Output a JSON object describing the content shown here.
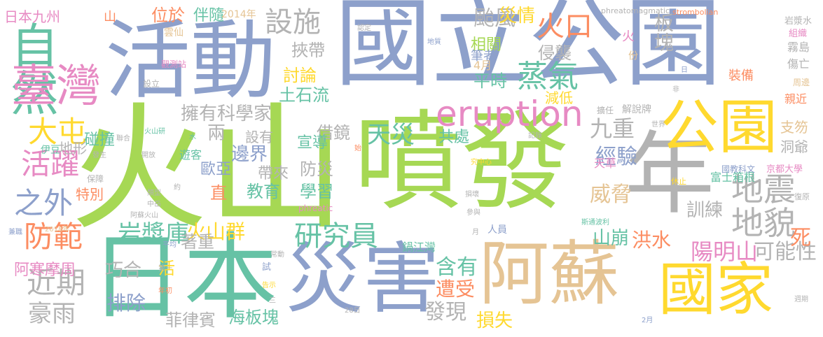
{
  "palette": {
    "green": "#a6d854",
    "teal": "#66c2a5",
    "blue": "#8da0cb",
    "pink": "#e78ac3",
    "orange": "#fc8d62",
    "yellow": "#ffd92f",
    "tan": "#e5c494",
    "gray": "#b3b3b3"
  },
  "words": [
    {
      "text": "國立公園",
      "color": "blue"
    },
    {
      "text": "活動",
      "color": "blue"
    },
    {
      "text": "火山",
      "color": "green"
    },
    {
      "text": "噴發",
      "color": "green"
    },
    {
      "text": "日本",
      "color": "teal"
    },
    {
      "text": "災害",
      "color": "blue"
    },
    {
      "text": "阿蘇",
      "color": "tan"
    },
    {
      "text": "國家",
      "color": "yellow"
    },
    {
      "text": "年",
      "color": "gray"
    },
    {
      "text": "公園",
      "color": "yellow"
    },
    {
      "text": "自然",
      "color": "teal"
    },
    {
      "text": "臺灣",
      "color": "pink"
    },
    {
      "text": "eruption",
      "color": "pink"
    },
    {
      "text": "設施",
      "color": "gray"
    },
    {
      "text": "火口",
      "color": "orange"
    },
    {
      "text": "颱風",
      "color": "gray"
    },
    {
      "text": "災情",
      "color": "yellow"
    },
    {
      "text": "蒸氣",
      "color": "teal"
    },
    {
      "text": "侵襲",
      "color": "gray"
    },
    {
      "text": "相關",
      "color": "green"
    },
    {
      "text": "板塊",
      "color": "gray"
    },
    {
      "text": "地震",
      "color": "gray"
    },
    {
      "text": "地貌",
      "color": "gray"
    },
    {
      "text": "九重",
      "color": "gray"
    },
    {
      "text": "天災",
      "color": "teal"
    },
    {
      "text": "大屯",
      "color": "yellow"
    },
    {
      "text": "活躍",
      "color": "pink"
    },
    {
      "text": "之外",
      "color": "blue"
    },
    {
      "text": "防範",
      "color": "orange"
    },
    {
      "text": "近期",
      "color": "gray"
    },
    {
      "text": "豪雨",
      "color": "gray"
    },
    {
      "text": "研究員",
      "color": "teal"
    },
    {
      "text": "岩漿庫",
      "color": "teal"
    },
    {
      "text": "火山群",
      "color": "yellow"
    },
    {
      "text": "擁有科學家",
      "color": "gray"
    },
    {
      "text": "陽明山",
      "color": "pink"
    },
    {
      "text": "可能性",
      "color": "gray"
    },
    {
      "text": "威脅",
      "color": "tan"
    },
    {
      "text": "經驗",
      "color": "blue"
    },
    {
      "text": "山崩",
      "color": "teal"
    },
    {
      "text": "洪水",
      "color": "orange"
    },
    {
      "text": "訓練",
      "color": "gray"
    },
    {
      "text": "死",
      "color": "orange"
    },
    {
      "text": "含有",
      "color": "teal"
    },
    {
      "text": "遭受",
      "color": "orange"
    },
    {
      "text": "發現",
      "color": "gray"
    },
    {
      "text": "損失",
      "color": "yellow"
    },
    {
      "text": "菲律賓",
      "color": "gray"
    },
    {
      "text": "海板塊",
      "color": "teal"
    },
    {
      "text": "排除",
      "color": "blue"
    },
    {
      "text": "巧合",
      "color": "gray"
    },
    {
      "text": "阿寒摩周",
      "color": "pink"
    },
    {
      "text": "日本九州",
      "color": "pink"
    },
    {
      "text": "位於",
      "color": "orange"
    },
    {
      "text": "伴隨",
      "color": "teal"
    },
    {
      "text": "2014年",
      "color": "tan"
    },
    {
      "text": "挾帶",
      "color": "gray"
    },
    {
      "text": "討論",
      "color": "yellow"
    },
    {
      "text": "土石流",
      "color": "teal"
    },
    {
      "text": "平時",
      "color": "teal"
    },
    {
      "text": "減低",
      "color": "yellow"
    },
    {
      "text": "借鏡",
      "color": "gray"
    },
    {
      "text": "兩",
      "color": "gray"
    },
    {
      "text": "設有",
      "color": "gray"
    },
    {
      "text": "宣導",
      "color": "teal"
    },
    {
      "text": "共處",
      "color": "teal"
    },
    {
      "text": "邊界",
      "color": "blue"
    },
    {
      "text": "防災",
      "color": "gray"
    },
    {
      "text": "歐亞",
      "color": "blue"
    },
    {
      "text": "帶來",
      "color": "gray"
    },
    {
      "text": "學習",
      "color": "teal"
    },
    {
      "text": "教育",
      "color": "teal"
    },
    {
      "text": "直",
      "color": "orange"
    },
    {
      "text": "著重",
      "color": "gray"
    },
    {
      "text": "活",
      "color": "yellow"
    },
    {
      "text": "碰撞",
      "color": "teal"
    },
    {
      "text": "地形",
      "color": "gray"
    },
    {
      "text": "特別",
      "color": "orange"
    },
    {
      "text": "遊客",
      "color": "teal"
    },
    {
      "text": "筆者",
      "color": "blue"
    },
    {
      "text": "4月",
      "color": "tan"
    },
    {
      "text": "火",
      "color": "pink"
    },
    {
      "text": "份",
      "color": "tan"
    },
    {
      "text": "裝備",
      "color": "orange"
    },
    {
      "text": "解說牌",
      "color": "gray"
    },
    {
      "text": "擴任",
      "color": "gray"
    },
    {
      "text": "天草",
      "color": "pink"
    },
    {
      "text": "富士箱根",
      "color": "teal"
    },
    {
      "text": "京都大學",
      "color": "pink"
    },
    {
      "text": "國教科文",
      "color": "blue"
    },
    {
      "text": "支笏",
      "color": "tan"
    },
    {
      "text": "洞爺",
      "color": "gray"
    },
    {
      "text": "親近",
      "color": "orange"
    },
    {
      "text": "周邊",
      "color": "tan"
    },
    {
      "text": "傷亡",
      "color": "gray"
    },
    {
      "text": "霧島",
      "color": "gray"
    },
    {
      "text": "組織",
      "color": "pink"
    },
    {
      "text": "岩漿水",
      "color": "gray"
    },
    {
      "text": "phreatomagmatic",
      "color": "gray"
    },
    {
      "text": "strombolian",
      "color": "orange"
    },
    {
      "text": "phreatic",
      "color": "pink"
    },
    {
      "text": "鍋江灣",
      "color": "teal"
    },
    {
      "text": "人員",
      "color": "blue"
    },
    {
      "text": "雲仙",
      "color": "tan"
    },
    {
      "text": "觀測站",
      "color": "pink"
    },
    {
      "text": "山",
      "color": "orange"
    },
    {
      "text": "設立",
      "color": "gray"
    },
    {
      "text": "伊豆",
      "color": "teal"
    },
    {
      "text": "發生",
      "color": "gray"
    },
    {
      "text": "聯合",
      "color": "gray"
    },
    {
      "text": "火山研",
      "color": "teal"
    },
    {
      "text": "開放",
      "color": "gray"
    },
    {
      "text": "保障",
      "color": "gray"
    },
    {
      "text": "類型",
      "color": "gray"
    },
    {
      "text": "約",
      "color": "gray"
    },
    {
      "text": "中岳",
      "color": "gray"
    },
    {
      "text": "阿蘇火山",
      "color": "gray"
    },
    {
      "text": "平均",
      "color": "blue"
    },
    {
      "text": "2018年",
      "color": "tan"
    },
    {
      "text": "兼職",
      "color": "blue"
    },
    {
      "text": "第一",
      "color": "gray"
    },
    {
      "text": "常動",
      "color": "gray"
    },
    {
      "text": "試",
      "color": "blue"
    },
    {
      "text": "年初",
      "color": "orange"
    },
    {
      "text": "告示",
      "color": "yellow"
    },
    {
      "text": "三",
      "color": "gray"
    },
    {
      "text": "28日",
      "color": "gray"
    },
    {
      "text": "損壞",
      "color": "gray"
    },
    {
      "text": "參與",
      "color": "gray"
    },
    {
      "text": "月",
      "color": "gray"
    },
    {
      "text": "斯通波利",
      "color": "teal"
    },
    {
      "text": "休止",
      "color": "yellow"
    },
    {
      "text": "復原",
      "color": "gray"
    },
    {
      "text": "週期",
      "color": "gray"
    },
    {
      "text": "2月",
      "color": "blue"
    },
    {
      "text": "究中心",
      "color": "yellow"
    },
    {
      "text": "始",
      "color": "orange"
    },
    {
      "text": "記錄",
      "color": "gray"
    },
    {
      "text": "世界",
      "color": "gray"
    },
    {
      "text": "認定",
      "color": "gray"
    },
    {
      "text": "地質",
      "color": "blue"
    },
    {
      "text": "日",
      "color": "blue"
    },
    {
      "text": "非",
      "color": "gray"
    },
    {
      "text": "水",
      "color": "teal"
    }
  ]
}
